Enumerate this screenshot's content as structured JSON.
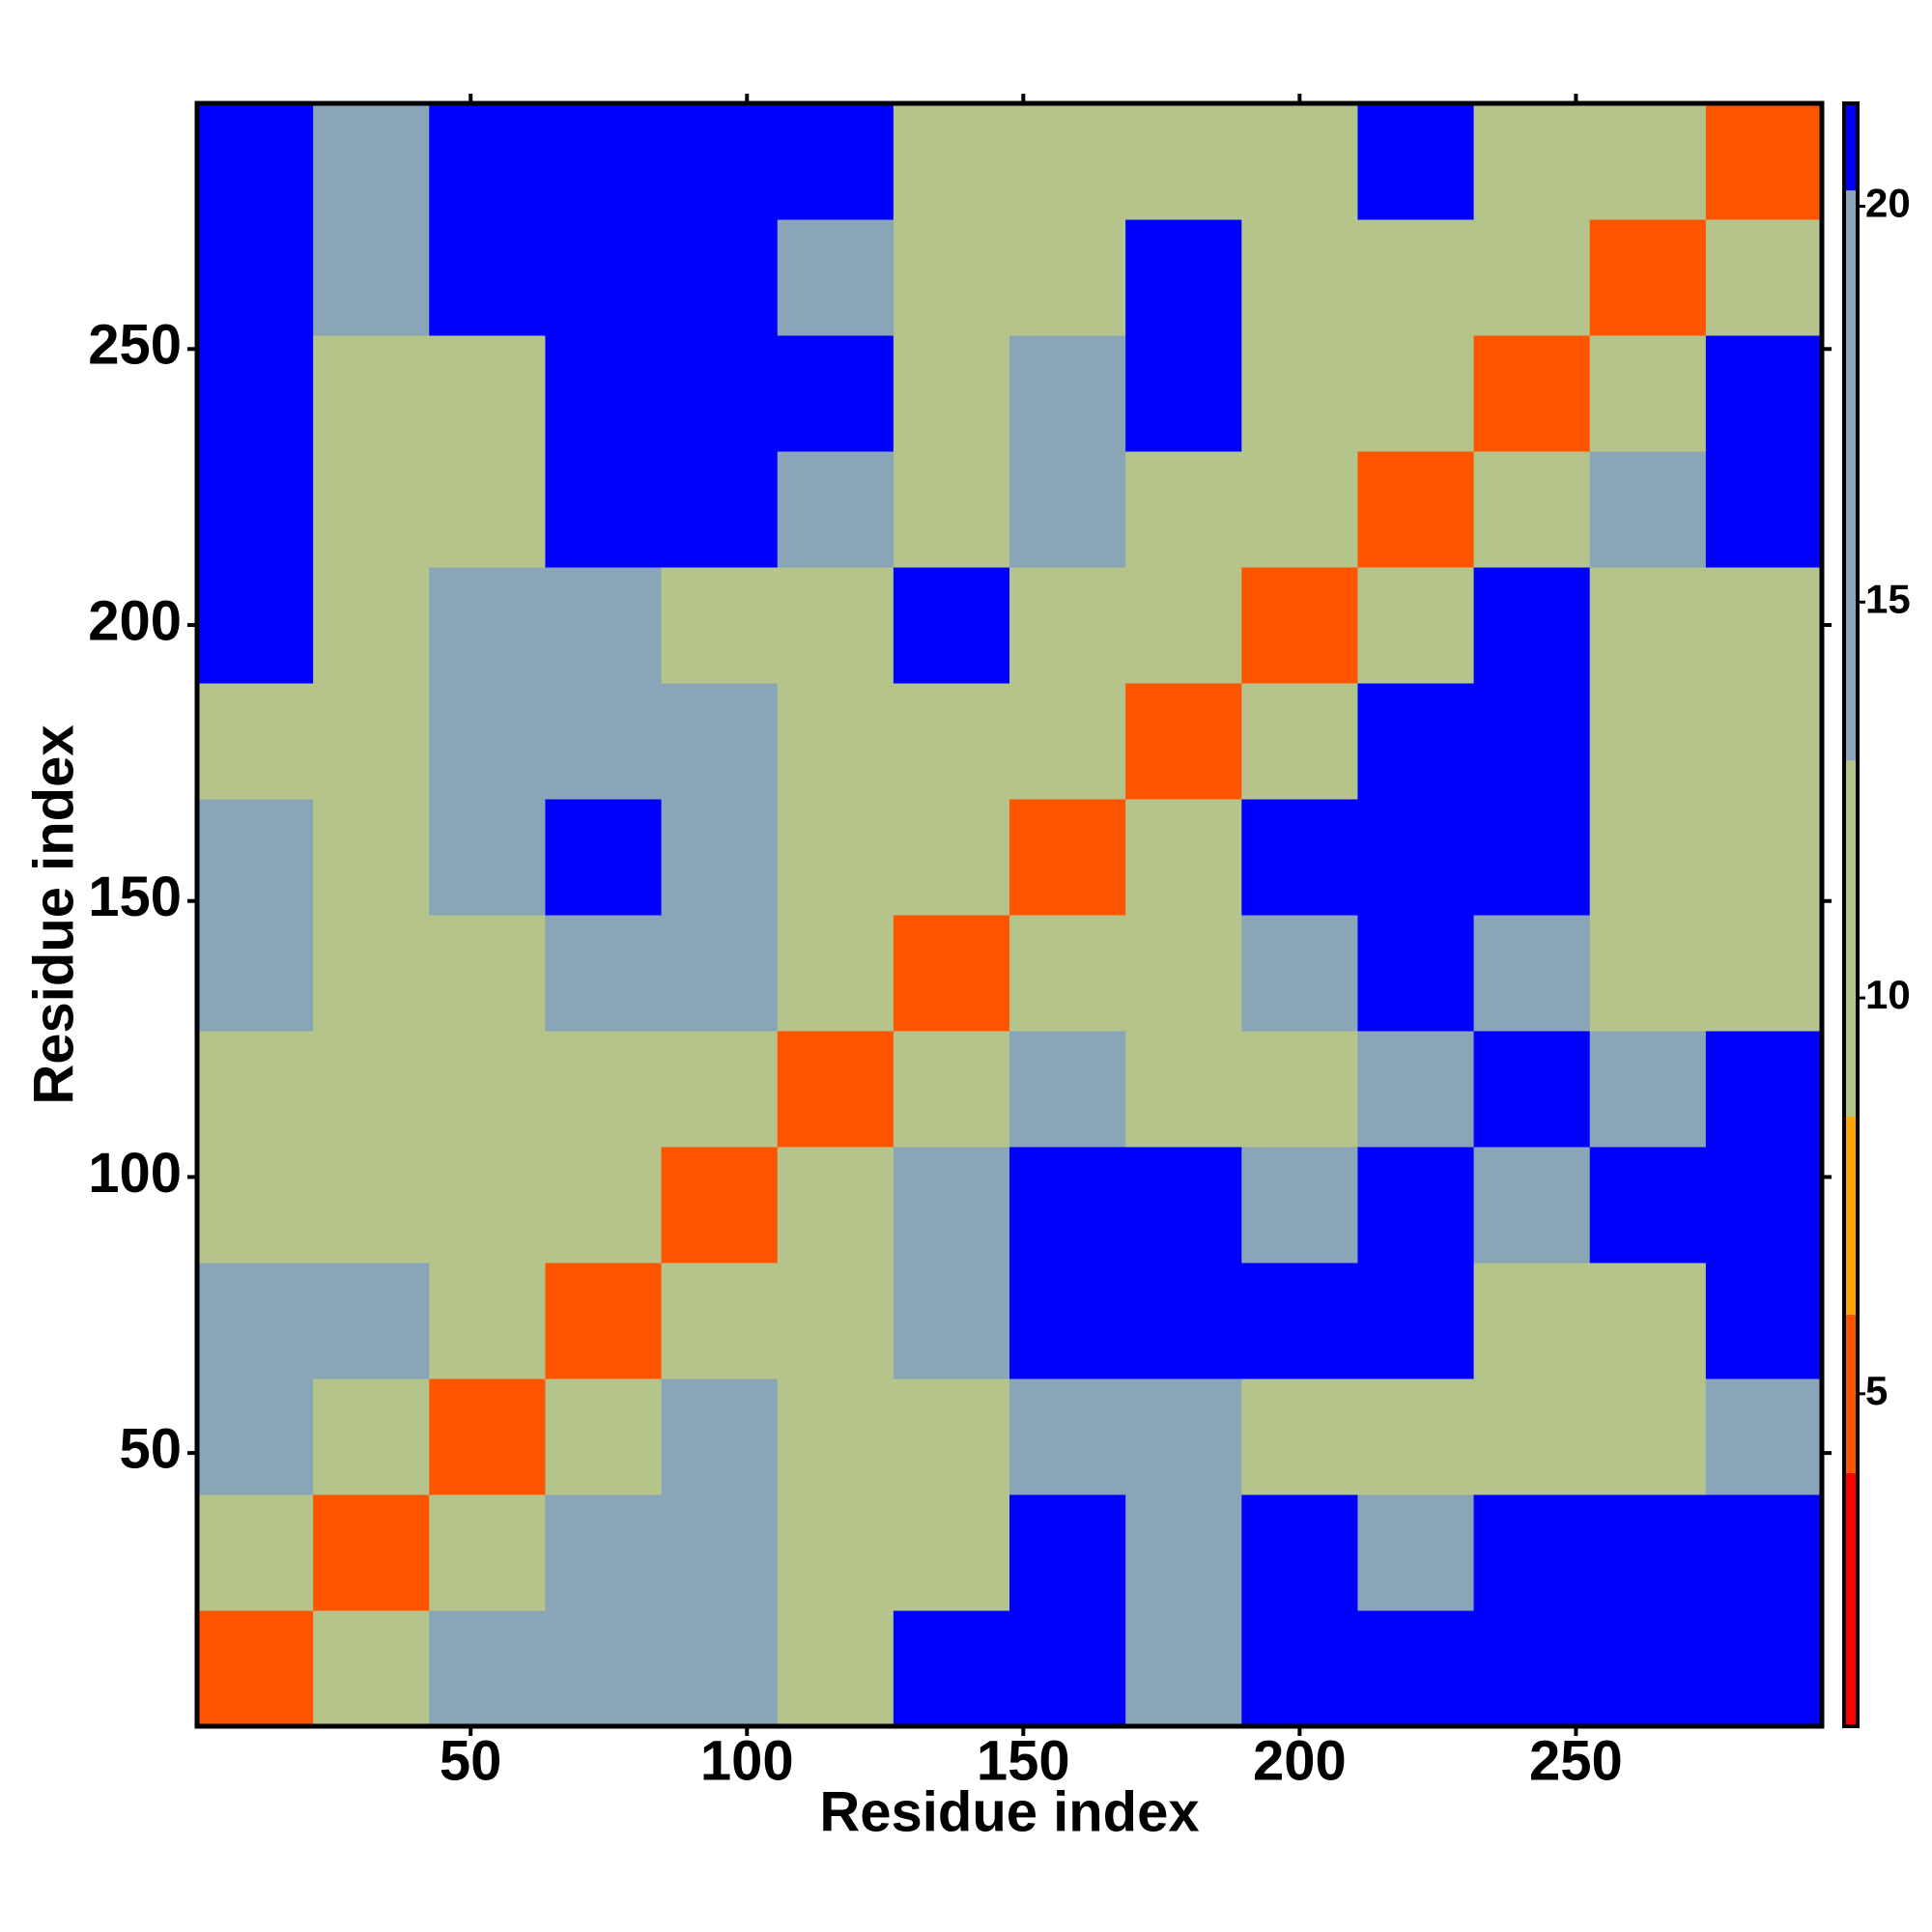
{
  "chart_data": {
    "type": "heatmap",
    "xlabel": "Residue index",
    "ylabel": "Residue index",
    "x": [
      11,
      32,
      53,
      74,
      95,
      116,
      137,
      158,
      179,
      200,
      221,
      242,
      263,
      284
    ],
    "y": [
      11,
      32,
      53,
      74,
      95,
      116,
      137,
      158,
      179,
      200,
      221,
      242,
      263,
      284
    ],
    "values": [
      [
        5,
        10,
        15,
        17,
        17,
        13,
        21,
        21,
        15,
        21,
        21,
        21,
        21,
        21
      ],
      [
        10,
        5,
        11,
        16,
        15,
        12,
        11,
        21,
        16,
        21,
        14,
        21,
        21,
        21
      ],
      [
        15,
        11,
        5,
        11,
        15,
        12,
        11,
        14,
        15,
        12,
        12,
        12,
        13,
        17
      ],
      [
        17,
        16,
        11,
        5,
        11,
        11,
        16,
        21,
        21,
        21,
        21,
        12,
        13,
        21
      ],
      [
        12,
        11,
        13,
        11,
        5,
        11,
        16,
        21,
        21,
        16,
        21,
        14,
        21,
        21
      ],
      [
        12,
        12,
        12,
        11,
        11,
        5,
        11,
        15,
        12,
        12,
        15,
        21,
        17,
        21
      ],
      [
        15,
        12,
        12,
        16,
        16,
        11,
        5,
        11,
        12,
        16,
        21,
        15,
        12,
        12
      ],
      [
        14,
        13,
        16,
        21,
        16,
        12,
        11,
        5,
        11,
        21,
        21,
        21,
        13,
        12
      ],
      [
        13,
        13,
        16,
        16,
        15,
        12,
        12,
        11,
        5,
        11,
        21,
        21,
        12,
        12
      ],
      [
        21,
        12,
        16,
        16,
        13,
        12,
        21,
        13,
        11,
        5,
        11,
        21,
        13,
        13
      ],
      [
        21,
        12,
        13,
        21,
        21,
        15,
        12,
        15,
        13,
        11,
        5,
        11,
        15,
        21
      ],
      [
        21,
        13,
        12,
        21,
        21,
        21,
        13,
        14,
        21,
        13,
        11,
        5,
        11,
        21
      ],
      [
        21,
        14,
        21,
        21,
        21,
        15,
        12,
        13,
        21,
        12,
        12,
        11,
        5,
        11
      ],
      [
        21,
        15,
        21,
        21,
        21,
        21,
        12,
        12,
        13,
        12,
        21,
        13,
        11,
        5
      ]
    ],
    "xlim": [
      0.5,
      294.5
    ],
    "ylim": [
      0.5,
      294.5
    ],
    "xticks": [
      50,
      100,
      150,
      200,
      250
    ],
    "yticks": [
      50,
      100,
      150,
      200,
      250
    ],
    "clim": [
      0.8,
      21.3
    ],
    "cticks": [
      5,
      10,
      15,
      20
    ],
    "colorscale": [
      {
        "max": 4,
        "color": "#ff0000"
      },
      {
        "max": 6,
        "color": "#ff5500"
      },
      {
        "max": 8.5,
        "color": "#ffa500"
      },
      {
        "max": 13,
        "color": "#b5c48a"
      },
      {
        "max": 20.2,
        "color": "#8aa4b8"
      },
      {
        "max": 21.3,
        "color": "#0000ff"
      }
    ]
  }
}
